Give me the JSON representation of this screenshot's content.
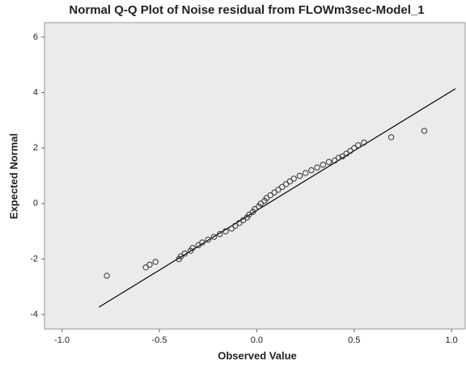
{
  "chart_data": {
    "type": "scatter",
    "title": "Normal Q-Q Plot of Noise residual from FLOWm3sec-Model_1",
    "x_label": "Observed Value",
    "y_label": "Expected Normal",
    "x": [
      -0.77,
      -0.57,
      -0.55,
      -0.52,
      -0.4,
      -0.39,
      -0.37,
      -0.34,
      -0.33,
      -0.3,
      -0.28,
      -0.25,
      -0.22,
      -0.19,
      -0.16,
      -0.13,
      -0.11,
      -0.09,
      -0.07,
      -0.05,
      -0.04,
      -0.02,
      -0.01,
      0.01,
      0.02,
      0.04,
      0.05,
      0.07,
      0.09,
      0.11,
      0.13,
      0.15,
      0.17,
      0.19,
      0.22,
      0.25,
      0.28,
      0.31,
      0.34,
      0.37,
      0.4,
      0.42,
      0.44,
      0.46,
      0.48,
      0.5,
      0.52,
      0.55,
      0.69,
      0.86
    ],
    "values": [
      -2.6,
      -2.3,
      -2.2,
      -2.1,
      -2.0,
      -1.9,
      -1.8,
      -1.7,
      -1.6,
      -1.5,
      -1.4,
      -1.3,
      -1.2,
      -1.1,
      -1.0,
      -0.9,
      -0.8,
      -0.7,
      -0.6,
      -0.5,
      -0.4,
      -0.3,
      -0.2,
      -0.1,
      0.0,
      0.1,
      0.2,
      0.3,
      0.4,
      0.5,
      0.6,
      0.7,
      0.8,
      0.9,
      1.0,
      1.1,
      1.2,
      1.3,
      1.4,
      1.5,
      1.55,
      1.65,
      1.7,
      1.8,
      1.9,
      2.0,
      2.1,
      2.2,
      2.39,
      2.62
    ],
    "color": "#333333",
    "reference_line": {
      "x": [
        -0.81,
        1.02
      ],
      "y": [
        -3.73,
        4.14
      ],
      "color": "#000000"
    },
    "xlim": [
      -1.09,
      1.07
    ],
    "ylim": [
      -4.52,
      6.52
    ],
    "xticks": [
      {
        "value": -1.0,
        "label": "-1.0"
      },
      {
        "value": -0.5,
        "label": "-0.5"
      },
      {
        "value": 0.0,
        "label": "0.0"
      },
      {
        "value": 0.5,
        "label": "0.5"
      },
      {
        "value": 1.0,
        "label": "1.0"
      }
    ],
    "yticks": [
      -4,
      -2,
      0,
      2,
      4,
      6
    ],
    "plot_background": "#ebebeb"
  }
}
